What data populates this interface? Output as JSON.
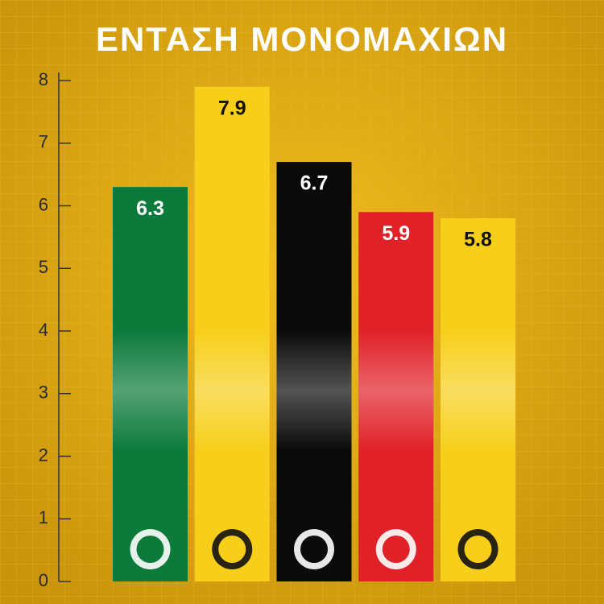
{
  "chart_data": {
    "type": "bar",
    "title": "ΕΝΤΑΣΗ ΜΟΝΟΜΑΧΙΩΝ",
    "categories": [
      null,
      null,
      null,
      null,
      null
    ],
    "values": [
      6.3,
      7.9,
      6.7,
      5.9,
      5.8
    ],
    "colors": [
      "#0b7a3b",
      "#f7cf1a",
      "#0a0a0a",
      "#e02128",
      "#f7cf1a"
    ],
    "ylim": [
      0,
      8
    ],
    "yticks": [
      0,
      1,
      2,
      3,
      4,
      5,
      6,
      7,
      8
    ],
    "grid": false
  }
}
